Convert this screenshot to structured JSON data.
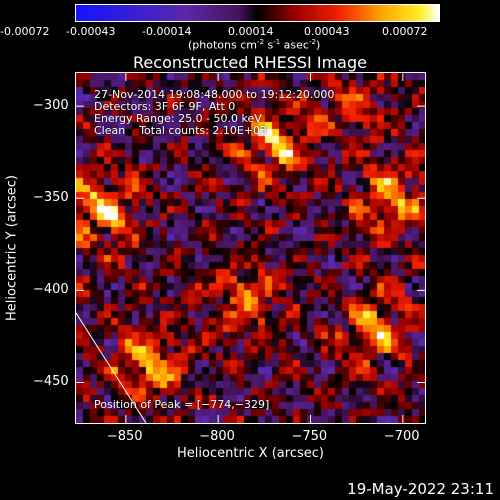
{
  "colorbar": {
    "ticks": [
      "-0.00072",
      "-0.00043",
      "-0.00014",
      "0.00014",
      "0.00043",
      "0.00072"
    ],
    "min": -0.00072,
    "max": 0.00072,
    "units_prefix": "(photons cm",
    "units_exp1": "-2",
    "units_mid": " s",
    "units_exp2": "-1",
    "units_mid2": " asec",
    "units_exp3": "-2",
    "units_suffix": ")"
  },
  "chart_data": {
    "type": "heatmap",
    "title": "Reconstructed RHESSI Image",
    "xlabel": "Heliocentric X (arcsec)",
    "ylabel": "Heliocentric Y (arcsec)",
    "xlim": [
      -877,
      -688
    ],
    "ylim": [
      -472,
      -282
    ],
    "xticks": [
      -850,
      -800,
      -750,
      -700
    ],
    "yticks": [
      -300,
      -350,
      -400,
      -450
    ],
    "x_tick_labels": [
      "−850",
      "−800",
      "−750",
      "−700"
    ],
    "y_tick_labels": [
      "−300",
      "−350",
      "−400",
      "−450"
    ],
    "peak": [
      -774,
      -329
    ],
    "sources": [
      {
        "x": -862,
        "y": -357,
        "value": 0.00072
      },
      {
        "x": -838,
        "y": -440,
        "value": 0.00065
      },
      {
        "x": -770,
        "y": -320,
        "value": 0.0007
      },
      {
        "x": -785,
        "y": -405,
        "value": 0.0006
      },
      {
        "x": -705,
        "y": -350,
        "value": 0.00065
      },
      {
        "x": -715,
        "y": -420,
        "value": 0.0006
      },
      {
        "x": -728,
        "y": -300,
        "value": 0.0004
      }
    ]
  },
  "annotations": {
    "time_range": "27-Nov-2014 19:08:48.000 to 19:12:20.000",
    "detectors": "Detectors: 3F 6F 9F, Att 0",
    "energy": "Energy Range: 25.0 - 50.0 keV",
    "clean": "Clean    Total counts: 2.10E+03",
    "peak_text": "Position of Peak = [−774,−329]"
  },
  "footer": {
    "timestamp": "19-May-2022 23:11"
  },
  "colors": {
    "background": "#000000",
    "foreground": "#ffffff"
  }
}
